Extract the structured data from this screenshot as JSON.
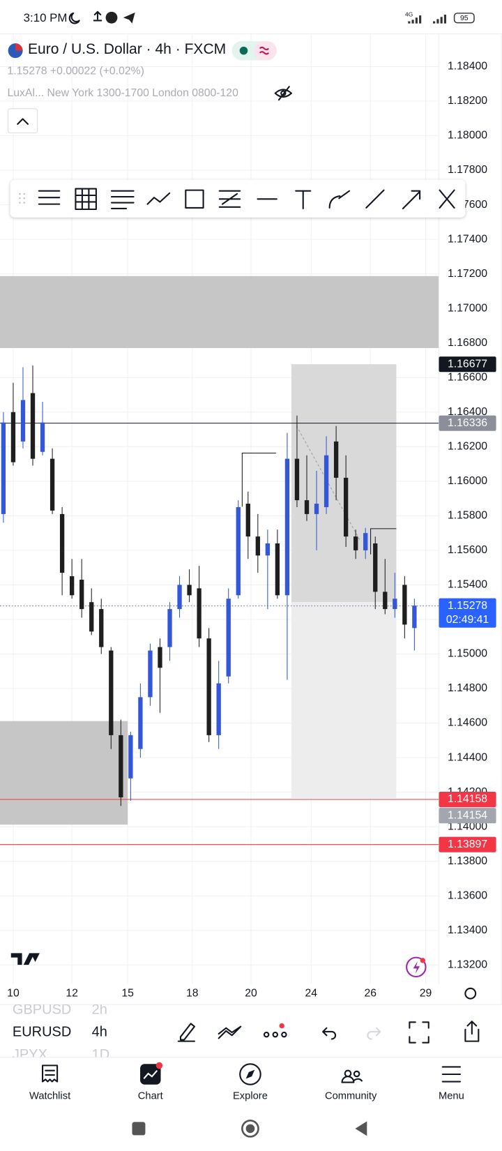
{
  "status_bar": {
    "time": "3:10 PM",
    "network": "4G",
    "battery": "95"
  },
  "header": {
    "symbol": "Euro / U.S. Dollar · 4h · FXCM",
    "quote": "1.15278 +0.00022 (+0.02%)",
    "indicator": "LuxAl... New York 1300-1700 London 0800-120"
  },
  "chart_data": {
    "type": "candlestick",
    "up_color": "#3357d6",
    "down_color": "#1e1e1e",
    "grid": true,
    "x": [
      -2,
      0,
      2,
      4,
      6,
      8,
      10,
      12,
      14,
      16,
      18,
      20,
      22,
      24,
      26,
      28,
      30,
      32,
      34,
      36,
      38,
      40,
      42,
      44,
      46,
      48,
      50,
      52,
      54,
      56,
      58,
      60,
      62,
      64,
      66,
      68,
      70,
      72,
      74,
      76,
      78,
      80,
      82
    ],
    "open": [
      1.1581,
      1.164,
      1.1623,
      1.1651,
      1.1617,
      1.1613,
      1.1581,
      1.1545,
      1.1543,
      1.153,
      1.1526,
      1.1502,
      1.1453,
      1.1428,
      1.1445,
      1.1475,
      1.1504,
      1.1504,
      1.1526,
      1.154,
      1.1538,
      1.1509,
      1.1453,
      1.1487,
      1.1534,
      1.1587,
      1.1568,
      1.1557,
      1.1564,
      1.1534,
      1.1613,
      1.1589,
      1.1581,
      1.1585,
      1.1623,
      1.1602,
      1.1568,
      1.156,
      1.1564,
      1.1536,
      1.1526,
      1.154,
      1.1515
    ],
    "high": [
      1.164,
      1.1657,
      1.1666,
      1.1667,
      1.1646,
      1.1619,
      1.1585,
      1.1555,
      1.1555,
      1.1538,
      1.1532,
      1.1504,
      1.1462,
      1.1455,
      1.1483,
      1.1506,
      1.1509,
      1.153,
      1.1545,
      1.1549,
      1.1551,
      1.1515,
      1.1496,
      1.1538,
      1.1589,
      1.1594,
      1.1581,
      1.1572,
      1.1572,
      1.1628,
      1.1638,
      1.1615,
      1.1606,
      1.1626,
      1.1632,
      1.1615,
      1.1572,
      1.1573,
      1.1568,
      1.1555,
      1.1547,
      1.1545,
      1.1532
    ],
    "low": [
      1.1576,
      1.1609,
      1.1619,
      1.1609,
      1.1615,
      1.1581,
      1.1534,
      1.1532,
      1.1521,
      1.1511,
      1.15,
      1.1445,
      1.1412,
      1.1415,
      1.144,
      1.147,
      1.1466,
      1.1496,
      1.1521,
      1.153,
      1.1504,
      1.1449,
      1.1445,
      1.1483,
      1.1532,
      1.1555,
      1.1547,
      1.1526,
      1.1532,
      1.1485,
      1.1585,
      1.1577,
      1.156,
      1.1581,
      1.1589,
      1.1562,
      1.1555,
      1.1555,
      1.1526,
      1.1523,
      1.1521,
      1.1509,
      1.1502
    ],
    "close": [
      1.1634,
      1.1611,
      1.1647,
      1.1613,
      1.1634,
      1.1583,
      1.1547,
      1.1534,
      1.1526,
      1.1513,
      1.1504,
      1.1453,
      1.1417,
      1.1453,
      1.1475,
      1.1502,
      1.1492,
      1.1526,
      1.154,
      1.1534,
      1.1509,
      1.1453,
      1.1483,
      1.1532,
      1.1585,
      1.1568,
      1.1557,
      1.1564,
      1.1534,
      1.1613,
      1.1589,
      1.1581,
      1.1587,
      1.1615,
      1.1602,
      1.1568,
      1.156,
      1.157,
      1.1536,
      1.1526,
      1.1532,
      1.1517,
      1.1528
    ],
    "xlim": [
      -2.7,
      87
    ],
    "xticks": [
      {
        "value": 0,
        "label": "10"
      },
      {
        "value": 12,
        "label": "12"
      },
      {
        "value": 23.4,
        "label": "15"
      },
      {
        "value": 36.6,
        "label": "18"
      },
      {
        "value": 48.6,
        "label": "20"
      },
      {
        "value": 60.9,
        "label": "24"
      },
      {
        "value": 73,
        "label": "26"
      },
      {
        "value": 84.3,
        "label": "29"
      }
    ],
    "ylim": [
      1.1309,
      1.1859
    ],
    "yticks": [
      {
        "value": 1.184,
        "label": "1.18400"
      },
      {
        "value": 1.182,
        "label": "1.18200"
      },
      {
        "value": 1.18,
        "label": "1.18000"
      },
      {
        "value": 1.178,
        "label": "1.17800"
      },
      {
        "value": 1.176,
        "label": "1.17600"
      },
      {
        "value": 1.174,
        "label": "1.17400"
      },
      {
        "value": 1.172,
        "label": "1.17200"
      },
      {
        "value": 1.17,
        "label": "1.17000"
      },
      {
        "value": 1.168,
        "label": "1.16800"
      },
      {
        "value": 1.166,
        "label": "1.16600"
      },
      {
        "value": 1.164,
        "label": "1.16400"
      },
      {
        "value": 1.162,
        "label": "1.16200"
      },
      {
        "value": 1.16,
        "label": "1.16000"
      },
      {
        "value": 1.158,
        "label": "1.15800"
      },
      {
        "value": 1.156,
        "label": "1.15600"
      },
      {
        "value": 1.154,
        "label": "1.15400"
      },
      {
        "value": 1.152,
        "label": "1.15200"
      },
      {
        "value": 1.15,
        "label": "1.15000"
      },
      {
        "value": 1.148,
        "label": "1.14800"
      },
      {
        "value": 1.146,
        "label": "1.14600"
      },
      {
        "value": 1.144,
        "label": "1.14400"
      },
      {
        "value": 1.142,
        "label": "1.14200"
      },
      {
        "value": 1.14,
        "label": "1.14000"
      },
      {
        "value": 1.138,
        "label": "1.13800"
      },
      {
        "value": 1.136,
        "label": "1.13600"
      },
      {
        "value": 1.134,
        "label": "1.13400"
      },
      {
        "value": 1.132,
        "label": "1.13200"
      }
    ],
    "price_labels": [
      {
        "value": 1.16677,
        "color": "#131722"
      },
      {
        "value": 1.16336,
        "color": "#8c8f99",
        "line": "solid",
        "line_color": "#131722"
      },
      {
        "value": 1.15278,
        "color": "#2962ff",
        "line": "dotted",
        "line_color": "#5a6a9a",
        "countdown": "02:49:41"
      },
      {
        "value": 1.14158,
        "color": "#f23645",
        "line": "solid",
        "line_color": "#f23645"
      },
      {
        "value": 1.14154,
        "color": "#a3a6af"
      },
      {
        "value": 1.13897,
        "color": "#f23645",
        "line": "solid",
        "line_color": "#f23645"
      }
    ]
  },
  "watchlist_strip": [
    {
      "symbol": "GBPUSD",
      "interval": "2h"
    },
    {
      "symbol": "EURUSD",
      "interval": "4h"
    },
    {
      "symbol": "JPYX",
      "interval": "1D"
    }
  ],
  "nav": [
    "Watchlist",
    "Chart",
    "Explore",
    "Community",
    "Menu"
  ]
}
